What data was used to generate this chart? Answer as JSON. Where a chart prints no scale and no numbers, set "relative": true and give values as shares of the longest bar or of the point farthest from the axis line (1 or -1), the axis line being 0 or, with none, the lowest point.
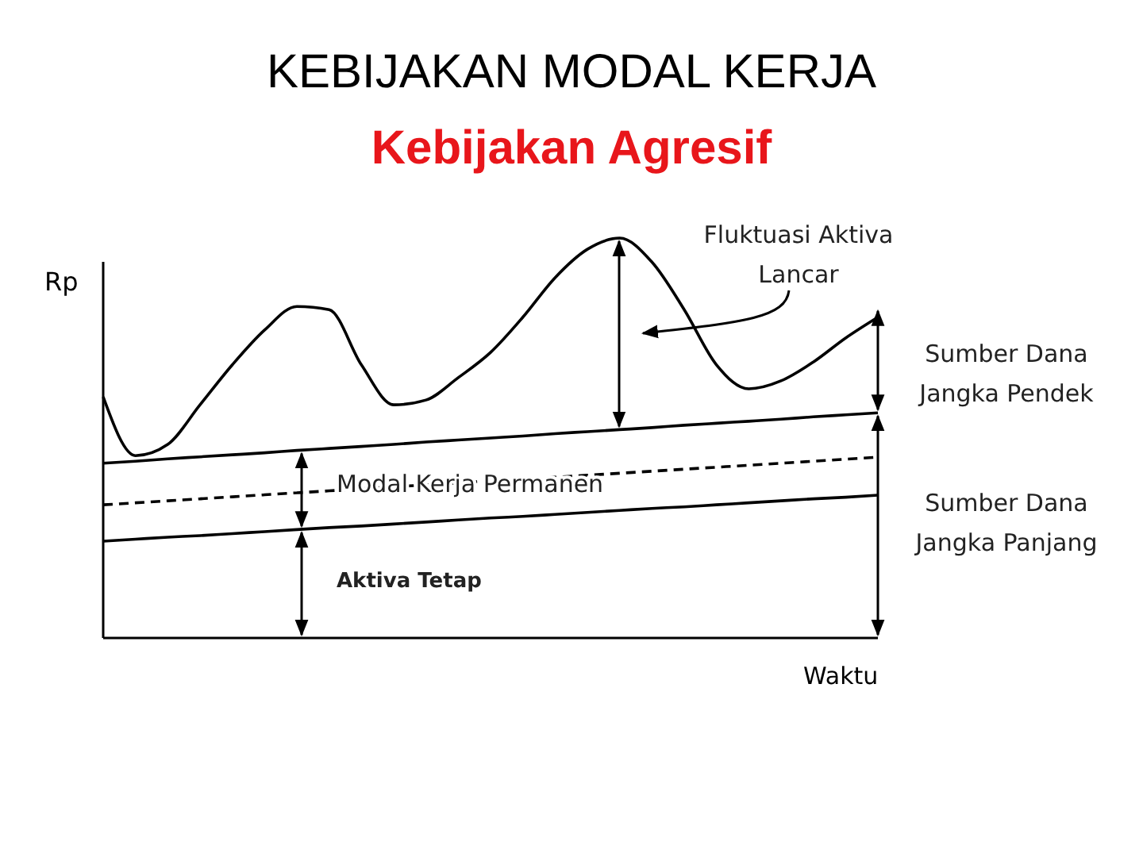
{
  "chart_data": {
    "type": "line",
    "title": "KEBIJAKAN MODAL KERJA",
    "subtitle": "Kebijakan Agresif",
    "xlabel": "Waktu",
    "ylabel": "Rp",
    "relative": true,
    "tick_labels": false,
    "marker": "none",
    "categories": [
      null,
      null,
      null,
      null,
      null,
      null,
      null,
      null,
      null,
      null,
      null,
      null,
      null,
      null,
      null,
      null,
      null,
      null,
      null,
      null,
      null,
      null,
      null,
      null,
      null
    ],
    "series": [
      {
        "color": "#000000",
        "line_style": "solid",
        "values": [
          0.603,
          0.456,
          0.484,
          0.583,
          0.683,
          0.77,
          0.829,
          0.821,
          0.683,
          0.583,
          0.595,
          0.651,
          0.714,
          0.802,
          0.901,
          0.972,
          1,
          0.94,
          0.821,
          0.683,
          0.623,
          0.643,
          0.69,
          0.75,
          0.802
        ]
      },
      {
        "color": "#000000",
        "line_style": "solid",
        "values": [
          0.437,
          0.442,
          0.448,
          0.453,
          0.458,
          0.463,
          0.469,
          0.474,
          0.479,
          0.484,
          0.49,
          0.495,
          0.5,
          0.505,
          0.511,
          0.516,
          0.521,
          0.526,
          0.532,
          0.537,
          0.542,
          0.547,
          0.553,
          0.558,
          0.563
        ]
      },
      {
        "color": "#000000",
        "line_style": "dashed",
        "values": [
          0.333,
          0.338,
          0.343,
          0.348,
          0.353,
          0.358,
          0.363,
          0.368,
          0.373,
          0.378,
          0.383,
          0.388,
          0.393,
          0.397,
          0.402,
          0.407,
          0.412,
          0.417,
          0.422,
          0.427,
          0.432,
          0.437,
          0.442,
          0.447,
          0.452
        ]
      },
      {
        "color": "#000000",
        "line_style": "solid",
        "values": [
          0.242,
          0.247,
          0.252,
          0.256,
          0.261,
          0.266,
          0.271,
          0.276,
          0.28,
          0.285,
          0.29,
          0.295,
          0.3,
          0.304,
          0.309,
          0.314,
          0.319,
          0.324,
          0.328,
          0.333,
          0.338,
          0.343,
          0.348,
          0.352,
          0.357
        ]
      }
    ],
    "annotations": [
      "Fluktuasi Aktiva\nLancar",
      "Modal Kerja Permanen",
      "Aktiva Tetap",
      "Sumber Dana\nJangka Pendek",
      "Sumber Dana\nJangka Panjang"
    ]
  }
}
